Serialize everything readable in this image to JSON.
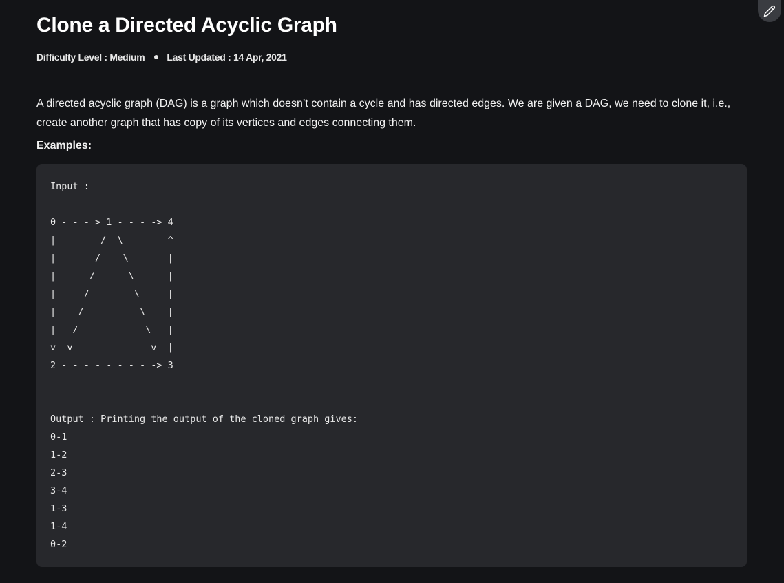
{
  "header": {
    "title": "Clone a Directed Acyclic Graph",
    "difficulty": "Difficulty Level : Medium",
    "last_updated": "Last Updated : 14 Apr, 2021",
    "edit_icon": "pencil-icon"
  },
  "article": {
    "description": "A directed acyclic graph (DAG) is a graph which doesn’t contain a cycle and has directed edges. We are given a DAG, we need to clone it, i.e., create another graph that has copy of its vertices and edges connecting them.",
    "examples_label": "Examples:",
    "code": "Input :\n\n0 - - - > 1 - - - -> 4\n|        /  \\        ^\n|       /    \\       |\n|      /      \\      |\n|     /        \\     |\n|    /          \\    |\n|   /            \\   |\nv  v              v  |\n2 - - - - - - - - -> 3\n\n\nOutput : Printing the output of the cloned graph gives:\n0-1\n1-2\n2-3\n3-4\n1-3\n1-4\n0-2"
  },
  "colors": {
    "background": "#131417",
    "code_background": "#27282c",
    "text": "#ffffff"
  }
}
